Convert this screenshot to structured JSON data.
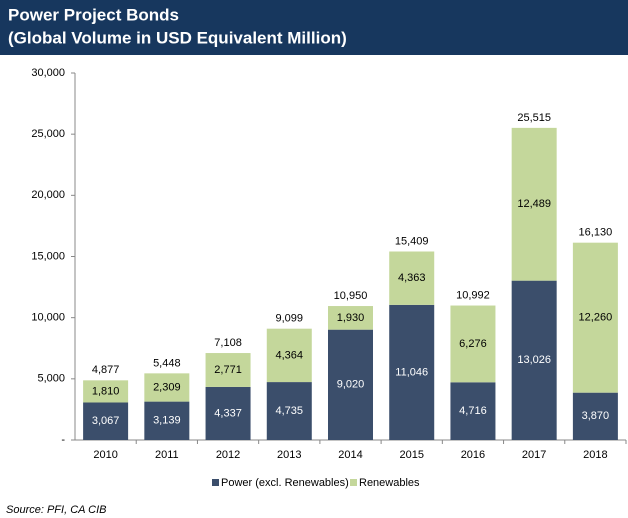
{
  "chart_data": {
    "type": "stacked_bar",
    "title": "Power Project Bonds",
    "subtitle": "(Global Volume in USD Equivalent Million)",
    "source": "Source: PFI, CA CIB",
    "categories": [
      "2010",
      "2011",
      "2012",
      "2013",
      "2014",
      "2015",
      "2016",
      "2017",
      "2018"
    ],
    "series": [
      {
        "name": "Power (excl. Renewables)",
        "color": "#3b4e6b",
        "values": [
          3067,
          3139,
          4337,
          4735,
          9020,
          11046,
          4716,
          13026,
          3870
        ],
        "value_labels": [
          "3,067",
          "3,139",
          "4,337",
          "4,735",
          "9,020",
          "11,046",
          "4,716",
          "13,026",
          "3,870"
        ]
      },
      {
        "name": "Renewables",
        "color": "#c4d79b",
        "values": [
          1810,
          2309,
          2771,
          4364,
          1930,
          4363,
          6276,
          12489,
          12260
        ],
        "value_labels": [
          "1,810",
          "2,309",
          "2,771",
          "4,364",
          "1,930",
          "4,363",
          "6,276",
          "12,489",
          "12,260"
        ]
      }
    ],
    "totals": [
      "4,877",
      "5,448",
      "7,108",
      "9,099",
      "10,950",
      "15,409",
      "10,992",
      "25,515",
      "16,130"
    ],
    "ylim": [
      0,
      30000
    ],
    "yticks": [
      {
        "value": 0,
        "label": "-"
      },
      {
        "value": 5000,
        "label": "5,000"
      },
      {
        "value": 10000,
        "label": "10,000"
      },
      {
        "value": 15000,
        "label": "15,000"
      },
      {
        "value": 20000,
        "label": "20,000"
      },
      {
        "value": 25000,
        "label": "25,000"
      },
      {
        "value": 30000,
        "label": "30,000"
      }
    ],
    "legend": "bottom"
  }
}
